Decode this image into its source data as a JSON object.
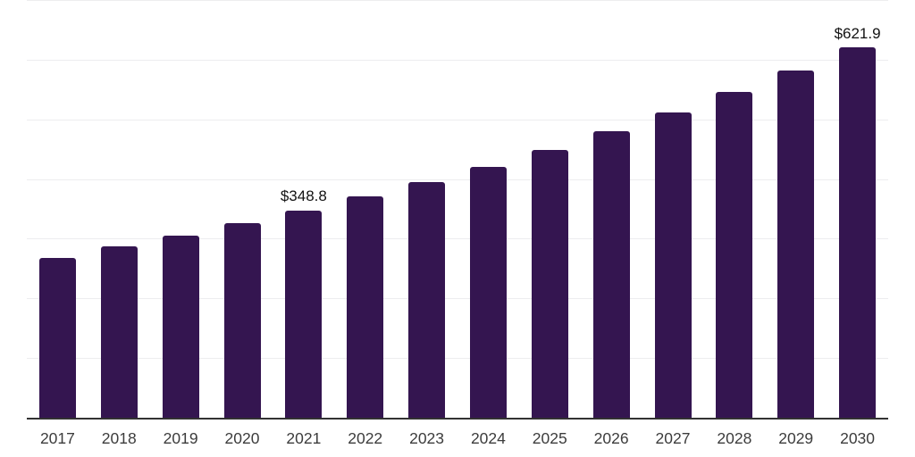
{
  "chart_data": {
    "type": "bar",
    "title": "",
    "xlabel": "",
    "ylabel": "",
    "categories": [
      "2017",
      "2018",
      "2019",
      "2020",
      "2021",
      "2022",
      "2023",
      "2024",
      "2025",
      "2026",
      "2027",
      "2028",
      "2029",
      "2030"
    ],
    "values": [
      270,
      289,
      307,
      327,
      348.8,
      372,
      396,
      422,
      450,
      481,
      513,
      548,
      583,
      621.9
    ],
    "data_labels": {
      "2021": "$348.8",
      "2030": "$621.9"
    },
    "ylim": [
      0,
      700
    ],
    "grid_step": 100,
    "grid": "horizontal-only",
    "legend_position": "none",
    "y_tick_labels_visible": false
  },
  "colors": {
    "background": "#ffffff",
    "bar": "#341550",
    "axis_line": "#323232",
    "gridline": "#ededef",
    "tick_label": "#3c3c3c",
    "data_label": "#121212"
  }
}
